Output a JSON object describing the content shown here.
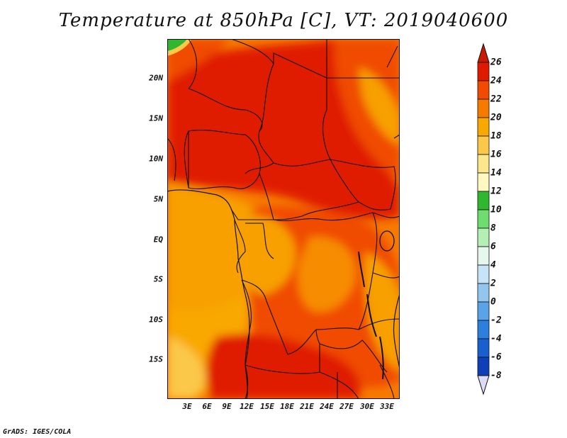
{
  "title": "Temperature at 850hPa [C], VT: 2019040600",
  "credit": "GrADS: IGES/COLA",
  "map": {
    "lat_labels": [
      "20N",
      "15N",
      "10N",
      "5N",
      "EQ",
      "5S",
      "10S",
      "15S"
    ],
    "lon_labels": [
      "3E",
      "6E",
      "9E",
      "12E",
      "15E",
      "18E",
      "21E",
      "24E",
      "27E",
      "30E",
      "33E"
    ]
  },
  "colorbar": {
    "labels": [
      "26",
      "24",
      "22",
      "20",
      "18",
      "16",
      "14",
      "12",
      "10",
      "8",
      "6",
      "4",
      "2",
      "0",
      "-2",
      "-4",
      "-6",
      "-8"
    ],
    "colors": [
      "#b00000",
      "#e01a00",
      "#f04b00",
      "#f77a00",
      "#f9a800",
      "#fbc84a",
      "#fde68c",
      "#fff8c0",
      "#2fb82f",
      "#6fdc6f",
      "#b4f0b4",
      "#e6f7ee",
      "#c6e3f7",
      "#92c6ef",
      "#5aa3e6",
      "#2c7fdc",
      "#1a5fcf",
      "#0e3fb8",
      "#0a2a90",
      "#050d60",
      "#e8e8f8"
    ],
    "overflow_color_high": "#c81a00",
    "overflow_color_low": "#dcdcf4"
  }
}
